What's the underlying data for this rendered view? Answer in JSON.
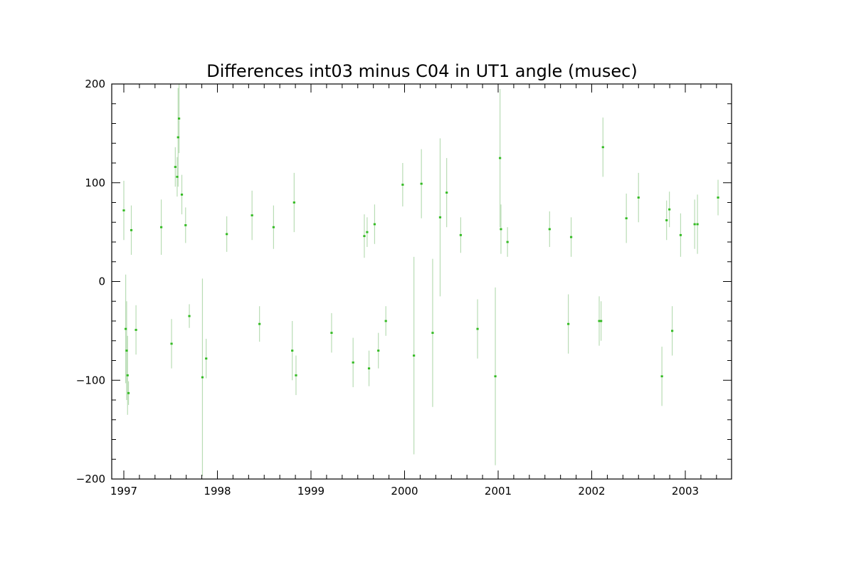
{
  "chart_data": {
    "type": "scatter",
    "title": "Differences int03 minus C04 in UT1 angle   (musec)",
    "xlabel": "",
    "ylabel": "",
    "xlim": [
      1997.0,
      2003.45
    ],
    "ylim": [
      -200,
      200
    ],
    "xticks": [
      1997,
      1998,
      1999,
      2000,
      2001,
      2002,
      2003
    ],
    "xtick_labels": [
      "1997",
      "1998",
      "1999",
      "2000",
      "2001",
      "2002",
      "2003"
    ],
    "yticks": [
      -200,
      -100,
      0,
      100,
      200
    ],
    "ytick_labels": [
      "−200",
      "−100",
      "0",
      "100",
      "200"
    ],
    "grid": false,
    "legend": "none",
    "error_bars": true,
    "series": [
      {
        "point_color": "#33bb22",
        "errorbar_color": "#b8dcb4",
        "points": [
          [
            1997.0,
            72,
            30
          ],
          [
            1997.02,
            -48,
            55
          ],
          [
            1997.03,
            -70,
            50
          ],
          [
            1997.04,
            -95,
            40
          ],
          [
            1997.05,
            -113,
            12
          ],
          [
            1997.08,
            52,
            25
          ],
          [
            1997.13,
            -49,
            25
          ],
          [
            1997.4,
            55,
            28
          ],
          [
            1997.51,
            -63,
            25
          ],
          [
            1997.55,
            116,
            20
          ],
          [
            1997.57,
            106,
            20
          ],
          [
            1997.58,
            146,
            50
          ],
          [
            1997.59,
            165,
            35
          ],
          [
            1997.62,
            88,
            20
          ],
          [
            1997.66,
            57,
            18
          ],
          [
            1997.7,
            -35,
            12
          ],
          [
            1997.84,
            -97,
            100
          ],
          [
            1997.88,
            -78,
            20
          ],
          [
            1998.1,
            48,
            18
          ],
          [
            1998.37,
            67,
            25
          ],
          [
            1998.45,
            -43,
            18
          ],
          [
            1998.6,
            55,
            22
          ],
          [
            1998.8,
            -70,
            30
          ],
          [
            1998.82,
            80,
            30
          ],
          [
            1998.84,
            -95,
            20
          ],
          [
            1999.22,
            -52,
            20
          ],
          [
            1999.45,
            -82,
            25
          ],
          [
            1999.57,
            46,
            22
          ],
          [
            1999.6,
            50,
            15
          ],
          [
            1999.62,
            -88,
            18
          ],
          [
            1999.68,
            58,
            20
          ],
          [
            1999.72,
            -70,
            18
          ],
          [
            1999.8,
            -40,
            15
          ],
          [
            1999.98,
            98,
            22
          ],
          [
            2000.1,
            -75,
            100
          ],
          [
            2000.18,
            99,
            35
          ],
          [
            2000.3,
            -52,
            75
          ],
          [
            2000.38,
            65,
            80
          ],
          [
            2000.45,
            90,
            35
          ],
          [
            2000.6,
            47,
            18
          ],
          [
            2000.78,
            -48,
            30
          ],
          [
            2000.97,
            -96,
            90
          ],
          [
            2001.02,
            125,
            70
          ],
          [
            2001.03,
            53,
            25
          ],
          [
            2001.1,
            40,
            15
          ],
          [
            2001.55,
            53,
            18
          ],
          [
            2001.75,
            -43,
            30
          ],
          [
            2001.78,
            45,
            20
          ],
          [
            2002.08,
            -40,
            25
          ],
          [
            2002.1,
            -40,
            20
          ],
          [
            2002.12,
            136,
            30
          ],
          [
            2002.37,
            64,
            25
          ],
          [
            2002.5,
            85,
            25
          ],
          [
            2002.75,
            -96,
            30
          ],
          [
            2002.8,
            62,
            20
          ],
          [
            2002.83,
            73,
            18
          ],
          [
            2002.86,
            -50,
            25
          ],
          [
            2002.95,
            47,
            22
          ],
          [
            2003.1,
            58,
            25
          ],
          [
            2003.13,
            58,
            30
          ],
          [
            2003.35,
            85,
            18
          ]
        ]
      }
    ]
  }
}
